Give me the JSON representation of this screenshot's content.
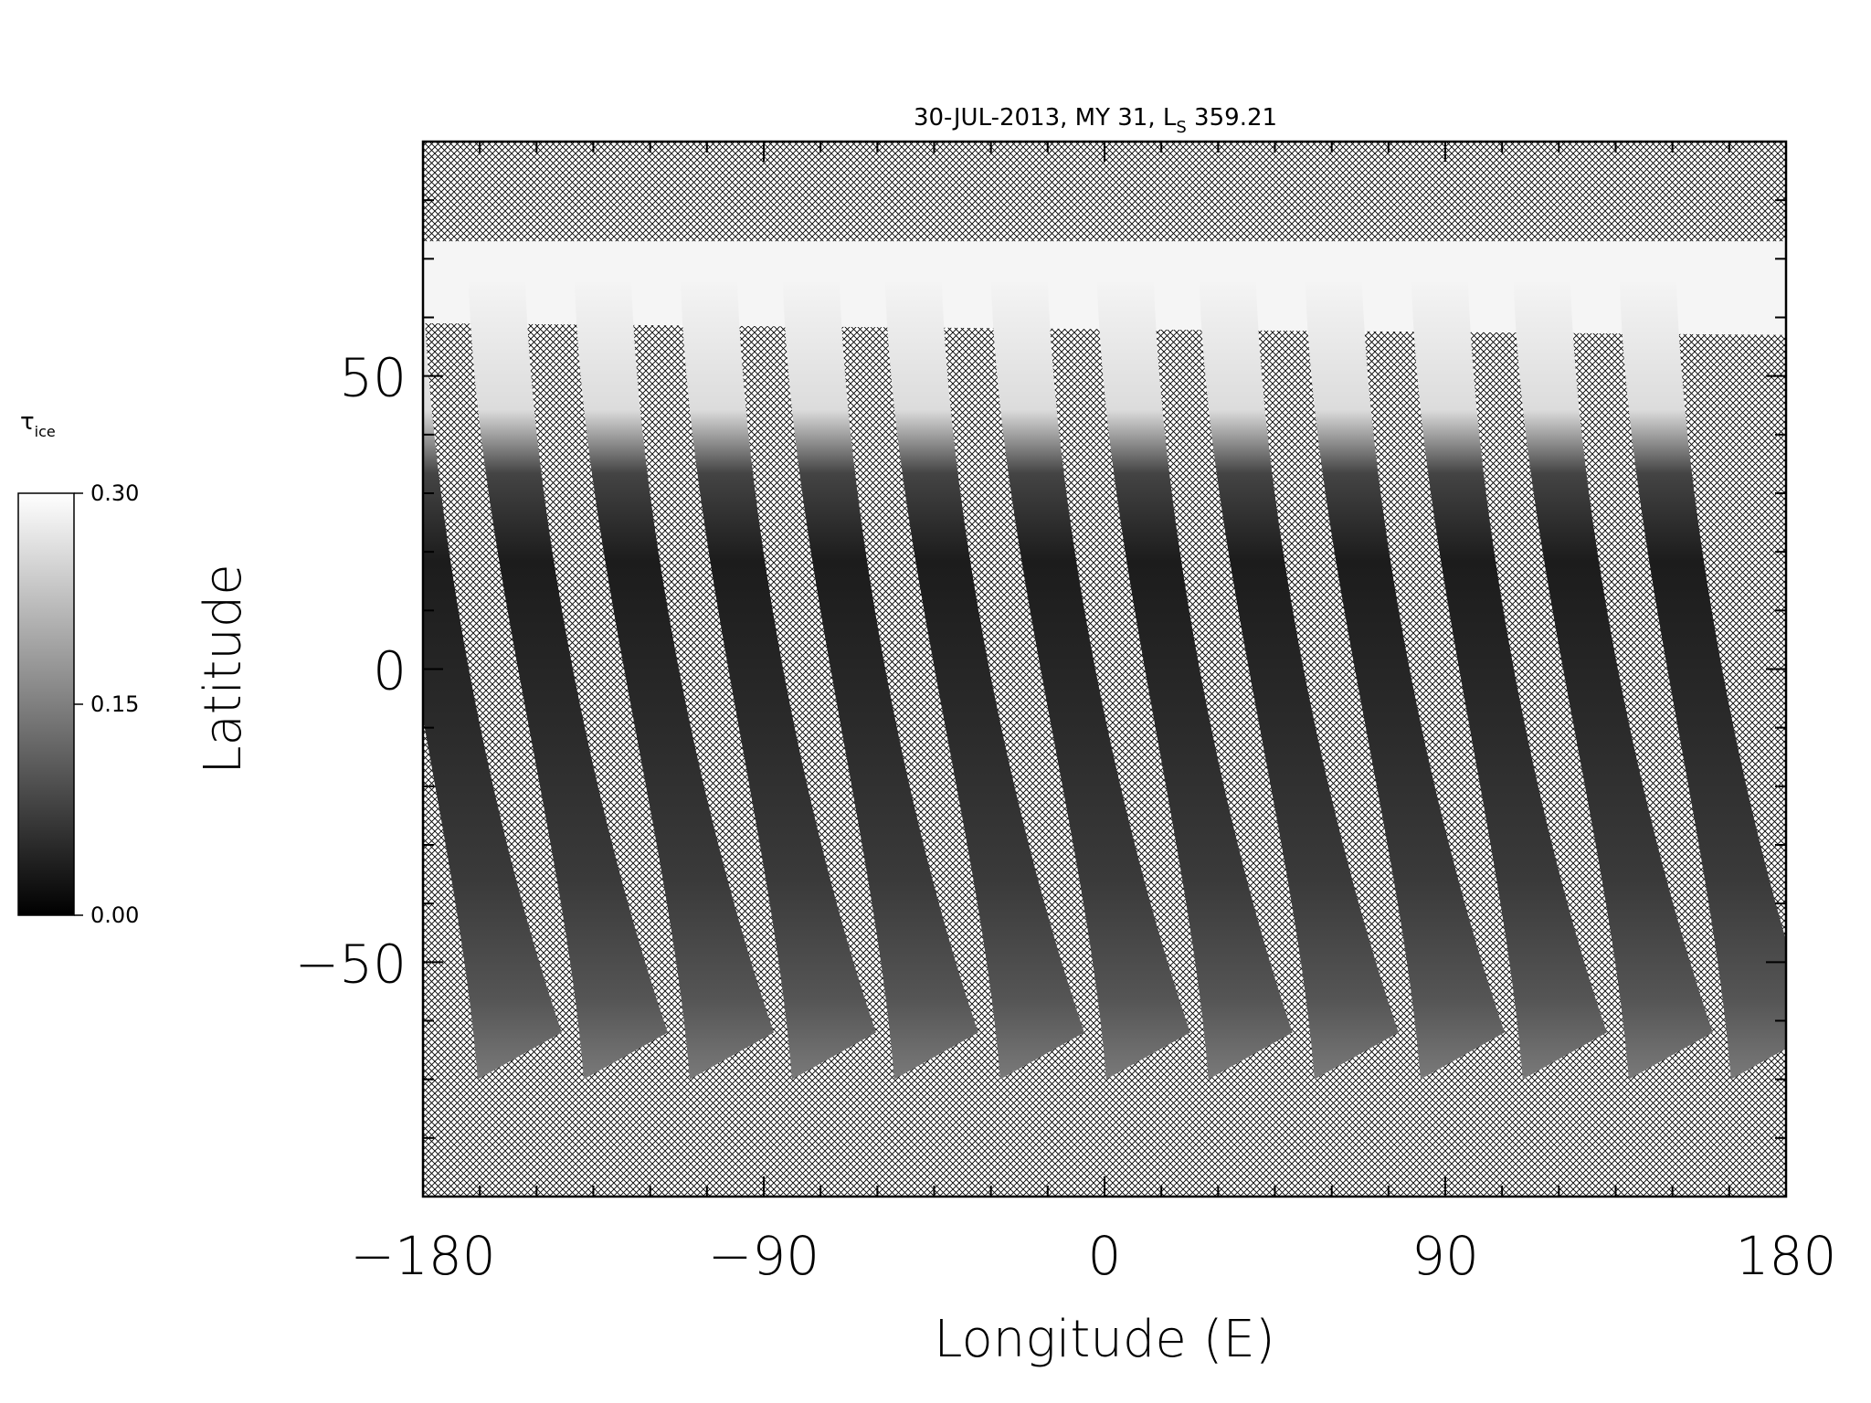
{
  "chart_data": {
    "type": "heatmap",
    "title_prefix": "30-JUL-2013, MY 31,  L",
    "title_sub": "S",
    "title_suffix": " 359.21",
    "xlabel": "Longitude (E)",
    "ylabel": "Latitude",
    "xlim": [
      -180,
      180
    ],
    "ylim": [
      -90,
      90
    ],
    "xticks": [
      -180,
      -90,
      0,
      90,
      180
    ],
    "xtick_labels": [
      "−180",
      "−90",
      "0",
      "90",
      "180"
    ],
    "yticks": [
      -50,
      0,
      50
    ],
    "ytick_labels": [
      "−50",
      "0",
      "50"
    ],
    "no_data_pattern": "cross-hatch",
    "swaths": [
      {
        "lon_top": -180,
        "lon_bottom": -153
      },
      {
        "lon_top": -153,
        "lon_bottom": -125
      },
      {
        "lon_top": -125,
        "lon_bottom": -97
      },
      {
        "lon_top": -97,
        "lon_bottom": -70
      },
      {
        "lon_top": -70,
        "lon_bottom": -43
      },
      {
        "lon_top": -43,
        "lon_bottom": -15
      },
      {
        "lon_top": -15,
        "lon_bottom": 13
      },
      {
        "lon_top": 13,
        "lon_bottom": 40
      },
      {
        "lon_top": 40,
        "lon_bottom": 68
      },
      {
        "lon_top": 68,
        "lon_bottom": 96
      },
      {
        "lon_top": 96,
        "lon_bottom": 123
      },
      {
        "lon_top": 123,
        "lon_bottom": 151
      },
      {
        "lon_top": 151,
        "lon_bottom": 178
      }
    ],
    "colorbar": {
      "label_main": "τ",
      "label_sub": "ice",
      "colormap": "grayscale",
      "min": 0.0,
      "max": 0.3,
      "ticks": [
        "0.30",
        "0.15",
        "0.00"
      ]
    }
  }
}
